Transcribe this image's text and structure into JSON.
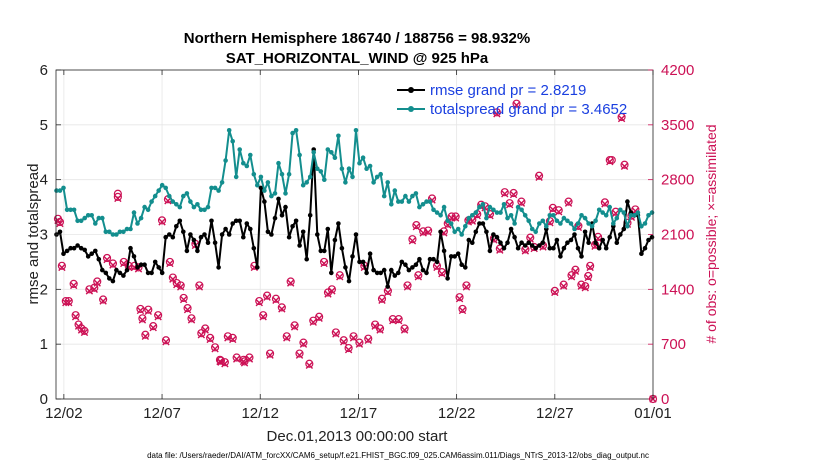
{
  "chart_data": {
    "type": "line",
    "title_line1": "Northern Hemisphere 186740 / 188756 = 98.932%",
    "title_line2": "SAT_HORIZONTAL_WIND @ 925 hPa",
    "xlabel": "Dec.01,2013 00:00:00 start",
    "ylabel": "rmse and totalspread",
    "y2label": "# of obs: o=possible; ×=assimilated",
    "xlim": [
      0.6,
      31.0
    ],
    "ylim": [
      0,
      6
    ],
    "y2lim": [
      0,
      4200
    ],
    "xticks": [
      {
        "pos": 1.0,
        "label": "12/02"
      },
      {
        "pos": 6.0,
        "label": "12/07"
      },
      {
        "pos": 11.0,
        "label": "12/12"
      },
      {
        "pos": 16.0,
        "label": "12/17"
      },
      {
        "pos": 21.0,
        "label": "12/22"
      },
      {
        "pos": 26.0,
        "label": "12/27"
      },
      {
        "pos": 31.0,
        "label": "01/01"
      }
    ],
    "yticks": [
      "0",
      "1",
      "2",
      "3",
      "4",
      "5",
      "6"
    ],
    "y2ticks": [
      "0",
      "700",
      "1400",
      "2100",
      "2800",
      "3500",
      "4200"
    ],
    "footer": "data file: /Users/raeder/DAI/ATM_forcXX/CAM6_setup/f.e21.FHIST_BGC.f09_025.CAM6assim.011/Diags_NTrS_2013-12/obs_diag_output.nc",
    "colors": {
      "rmse": "#000000",
      "spread": "#138e8e",
      "obs": "#cc1155",
      "legend_text": "#1a3fe0"
    },
    "series": [
      {
        "name": "rmse grand pr = 2.8219",
        "key": "rmse",
        "values": [
          3.0,
          3.05,
          2.65,
          2.7,
          2.75,
          2.75,
          2.8,
          2.75,
          2.72,
          2.6,
          2.65,
          2.7,
          2.55,
          2.35,
          2.3,
          2.2,
          2.15,
          2.35,
          2.3,
          2.25,
          2.35,
          2.75,
          2.6,
          2.4,
          2.45,
          2.45,
          2.3,
          2.3,
          2.5,
          2.4,
          2.3,
          2.95,
          3.0,
          2.95,
          3.15,
          3.25,
          3.05,
          2.7,
          3.0,
          2.9,
          2.7,
          2.95,
          3.0,
          2.85,
          3.25,
          2.85,
          2.4,
          3.0,
          3.1,
          3.0,
          3.2,
          3.25,
          3.25,
          2.95,
          3.2,
          3.1,
          2.75,
          2.4,
          3.85,
          3.6,
          3.05,
          3.0,
          3.3,
          3.65,
          3.35,
          3.5,
          2.95,
          3.15,
          3.25,
          2.8,
          3.05,
          2.55,
          3.35,
          4.55,
          3.0,
          2.7,
          2.7,
          3.1,
          2.3,
          2.9,
          3.2,
          2.75,
          2.4,
          2.15,
          2.6,
          3.0,
          2.5,
          2.5,
          2.3,
          2.65,
          2.35,
          2.3,
          2.3,
          2.35,
          2.05,
          2.35,
          2.25,
          2.3,
          2.5,
          2.45,
          2.35,
          2.4,
          2.45,
          2.55,
          2.35,
          2.3,
          2.55,
          2.55,
          2.5,
          3.05,
          2.7,
          2.2,
          2.6,
          2.6,
          2.65,
          2.45,
          2.4,
          2.9,
          2.85,
          3.05,
          3.2,
          3.2,
          3.05,
          2.7,
          3.0,
          2.95,
          2.85,
          2.75,
          2.85,
          3.1,
          2.95,
          2.75,
          2.85,
          2.8,
          2.85,
          2.8,
          2.75,
          2.8,
          2.85,
          3.1,
          2.75,
          2.75,
          2.9,
          2.6,
          2.75,
          2.85,
          2.9,
          3.0,
          2.75,
          2.6,
          3.05,
          2.85,
          3.2,
          2.85,
          2.75,
          2.9,
          2.75,
          2.95,
          3.15,
          2.85,
          3.0,
          3.1,
          3.6,
          3.4,
          3.35,
          3.35,
          2.65,
          2.75,
          2.9,
          2.95
        ]
      },
      {
        "name": "totalspread grand pr = 3.4652",
        "key": "spread",
        "values": [
          3.8,
          3.8,
          3.85,
          3.45,
          3.45,
          3.45,
          3.25,
          3.25,
          3.3,
          3.35,
          3.35,
          3.2,
          3.3,
          3.3,
          3.05,
          3.05,
          3.0,
          3.0,
          3.05,
          3.05,
          3.1,
          3.1,
          3.4,
          3.2,
          3.3,
          3.5,
          3.45,
          3.6,
          3.7,
          3.8,
          3.9,
          3.85,
          3.7,
          3.6,
          3.55,
          3.5,
          3.7,
          3.75,
          3.6,
          3.5,
          3.55,
          3.45,
          3.45,
          3.5,
          3.85,
          3.85,
          3.8,
          3.95,
          4.35,
          4.9,
          4.7,
          4.05,
          4.55,
          4.3,
          4.25,
          4.45,
          4.1,
          3.9,
          4.05,
          3.8,
          3.95,
          3.7,
          3.75,
          4.3,
          4.1,
          3.75,
          4.1,
          4.85,
          4.9,
          4.45,
          3.9,
          3.95,
          4.05,
          4.5,
          4.2,
          4.15,
          4.0,
          4.55,
          4.5,
          4.4,
          4.8,
          4.2,
          3.95,
          4.2,
          4.05,
          4.9,
          4.3,
          4.4,
          4.2,
          4.25,
          3.95,
          4.05,
          4.1,
          3.7,
          3.95,
          3.55,
          3.8,
          3.6,
          3.6,
          3.7,
          3.6,
          3.7,
          3.75,
          3.5,
          3.55,
          3.6,
          3.6,
          3.45,
          3.4,
          3.35,
          3.5,
          3.25,
          3.2,
          3.05,
          3.1,
          3.0,
          3.15,
          3.3,
          3.35,
          3.4,
          3.5,
          3.55,
          3.3,
          3.5,
          3.45,
          3.4,
          3.4,
          3.55,
          3.3,
          3.35,
          3.2,
          3.5,
          3.45,
          3.35,
          3.25,
          3.1,
          3.05,
          3.2,
          3.25,
          3.15,
          3.35,
          3.35,
          3.25,
          3.2,
          3.3,
          3.25,
          3.2,
          3.1,
          3.2,
          3.35,
          3.3,
          3.2,
          3.15,
          3.25,
          3.45,
          3.4,
          3.35,
          3.5,
          3.2,
          3.3,
          3.45,
          3.4,
          3.15,
          3.35,
          3.35,
          3.4,
          3.15,
          3.2,
          3.35,
          3.4
        ]
      }
    ],
    "obs_possible": [
      [
        0.7,
        2300
      ],
      [
        0.8,
        2260
      ],
      [
        0.9,
        1700
      ],
      [
        1.1,
        1250
      ],
      [
        1.25,
        1250
      ],
      [
        1.5,
        1470
      ],
      [
        1.6,
        1070
      ],
      [
        1.75,
        950
      ],
      [
        1.9,
        900
      ],
      [
        2.05,
        870
      ],
      [
        2.3,
        1400
      ],
      [
        2.55,
        1420
      ],
      [
        2.7,
        1500
      ],
      [
        3.0,
        1270
      ],
      [
        3.2,
        1800
      ],
      [
        3.5,
        1730
      ],
      [
        3.75,
        2620
      ],
      [
        3.75,
        2580
      ],
      [
        4.05,
        1750
      ],
      [
        4.3,
        1700
      ],
      [
        4.6,
        1700
      ],
      [
        4.8,
        1680
      ],
      [
        4.9,
        1150
      ],
      [
        5.0,
        1030
      ],
      [
        5.15,
        820
      ],
      [
        5.3,
        1140
      ],
      [
        5.55,
        930
      ],
      [
        5.8,
        1070
      ],
      [
        6.0,
        2280
      ],
      [
        6.2,
        750
      ],
      [
        6.3,
        2550
      ],
      [
        6.4,
        1750
      ],
      [
        6.55,
        1550
      ],
      [
        6.75,
        1480
      ],
      [
        6.95,
        1450
      ],
      [
        7.1,
        1290
      ],
      [
        7.3,
        1160
      ],
      [
        7.5,
        1030
      ],
      [
        7.7,
        1980
      ],
      [
        7.9,
        1450
      ],
      [
        8.0,
        840
      ],
      [
        8.2,
        900
      ],
      [
        8.45,
        780
      ],
      [
        8.7,
        660
      ],
      [
        8.95,
        500
      ],
      [
        9.0,
        490
      ],
      [
        9.2,
        470
      ],
      [
        9.35,
        800
      ],
      [
        9.6,
        780
      ],
      [
        9.8,
        530
      ],
      [
        10.15,
        500
      ],
      [
        10.2,
        480
      ],
      [
        10.45,
        530
      ],
      [
        10.7,
        1700
      ],
      [
        10.95,
        1250
      ],
      [
        11.15,
        1070
      ],
      [
        11.35,
        1320
      ],
      [
        11.5,
        580
      ],
      [
        11.8,
        1280
      ],
      [
        12.1,
        1170
      ],
      [
        12.35,
        800
      ],
      [
        12.55,
        1500
      ],
      [
        12.75,
        940
      ],
      [
        13.0,
        580
      ],
      [
        13.2,
        720
      ],
      [
        13.5,
        450
      ],
      [
        13.7,
        1000
      ],
      [
        14.0,
        1050
      ],
      [
        14.25,
        1750
      ],
      [
        14.45,
        1360
      ],
      [
        14.65,
        1400
      ],
      [
        14.85,
        850
      ],
      [
        15.05,
        1580
      ],
      [
        15.25,
        750
      ],
      [
        15.5,
        650
      ],
      [
        15.75,
        800
      ],
      [
        16.05,
        720
      ],
      [
        16.3,
        1700
      ],
      [
        16.5,
        770
      ],
      [
        16.85,
        950
      ],
      [
        17.1,
        900
      ],
      [
        17.2,
        1280
      ],
      [
        17.5,
        1380
      ],
      [
        17.75,
        1020
      ],
      [
        18.05,
        1020
      ],
      [
        18.35,
        900
      ],
      [
        18.5,
        1450
      ],
      [
        18.75,
        2040
      ],
      [
        18.95,
        2220
      ],
      [
        19.05,
        1580
      ],
      [
        19.3,
        2140
      ],
      [
        19.55,
        2150
      ],
      [
        19.75,
        2560
      ],
      [
        20.0,
        1700
      ],
      [
        20.25,
        1620
      ],
      [
        20.35,
        2140
      ],
      [
        20.55,
        2240
      ],
      [
        20.75,
        2330
      ],
      [
        20.95,
        2330
      ],
      [
        21.15,
        1300
      ],
      [
        21.3,
        1150
      ],
      [
        21.5,
        1450
      ],
      [
        21.6,
        2280
      ],
      [
        21.8,
        2290
      ],
      [
        22.05,
        2360
      ],
      [
        22.25,
        2480
      ],
      [
        22.45,
        2460
      ],
      [
        22.7,
        2360
      ],
      [
        22.9,
        2050
      ],
      [
        23.05,
        3660
      ],
      [
        23.2,
        1920
      ],
      [
        23.45,
        2640
      ],
      [
        23.7,
        2500
      ],
      [
        23.9,
        2630
      ],
      [
        24.05,
        3770
      ],
      [
        24.3,
        2520
      ],
      [
        24.5,
        1910
      ],
      [
        24.75,
        2060
      ],
      [
        24.95,
        1940
      ],
      [
        25.2,
        2850
      ],
      [
        25.4,
        1960
      ],
      [
        25.75,
        2270
      ],
      [
        25.9,
        2440
      ],
      [
        26.0,
        1380
      ],
      [
        26.2,
        2410
      ],
      [
        26.45,
        1460
      ],
      [
        26.7,
        2520
      ],
      [
        26.85,
        1580
      ],
      [
        27.05,
        1650
      ],
      [
        27.2,
        2210
      ],
      [
        27.35,
        1460
      ],
      [
        27.55,
        1440
      ],
      [
        27.7,
        1570
      ],
      [
        27.8,
        1700
      ],
      [
        28.05,
        1970
      ],
      [
        28.2,
        2070
      ],
      [
        28.55,
        2510
      ],
      [
        28.8,
        3050
      ],
      [
        28.9,
        3050
      ],
      [
        29.1,
        2390
      ],
      [
        29.4,
        3600
      ],
      [
        29.55,
        2990
      ],
      [
        29.7,
        2250
      ],
      [
        29.9,
        2340
      ],
      [
        30.1,
        2420
      ]
    ],
    "obs_assimilated": [
      [
        0.7,
        2280
      ],
      [
        0.8,
        2240
      ],
      [
        0.9,
        1680
      ],
      [
        1.1,
        1230
      ],
      [
        1.25,
        1230
      ],
      [
        1.5,
        1450
      ],
      [
        1.6,
        1050
      ],
      [
        1.75,
        930
      ],
      [
        1.9,
        880
      ],
      [
        2.05,
        850
      ],
      [
        2.3,
        1380
      ],
      [
        2.55,
        1400
      ],
      [
        2.7,
        1480
      ],
      [
        3.0,
        1250
      ],
      [
        3.2,
        1780
      ],
      [
        3.5,
        1710
      ],
      [
        3.75,
        2560
      ],
      [
        4.05,
        1730
      ],
      [
        4.3,
        1680
      ],
      [
        4.6,
        1680
      ],
      [
        4.8,
        1660
      ],
      [
        4.9,
        1130
      ],
      [
        5.0,
        1010
      ],
      [
        5.15,
        800
      ],
      [
        5.3,
        1120
      ],
      [
        5.55,
        910
      ],
      [
        5.8,
        1050
      ],
      [
        6.0,
        2260
      ],
      [
        6.2,
        730
      ],
      [
        6.3,
        2530
      ],
      [
        6.4,
        1730
      ],
      [
        6.55,
        1530
      ],
      [
        6.75,
        1460
      ],
      [
        6.95,
        1430
      ],
      [
        7.1,
        1270
      ],
      [
        7.3,
        1140
      ],
      [
        7.5,
        1010
      ],
      [
        7.7,
        1960
      ],
      [
        7.9,
        1430
      ],
      [
        8.0,
        820
      ],
      [
        8.2,
        880
      ],
      [
        8.45,
        760
      ],
      [
        8.7,
        640
      ],
      [
        8.95,
        480
      ],
      [
        9.0,
        470
      ],
      [
        9.2,
        450
      ],
      [
        9.35,
        780
      ],
      [
        9.6,
        760
      ],
      [
        9.8,
        510
      ],
      [
        10.15,
        480
      ],
      [
        10.2,
        460
      ],
      [
        10.45,
        510
      ],
      [
        10.7,
        1680
      ],
      [
        10.95,
        1230
      ],
      [
        11.15,
        1050
      ],
      [
        11.35,
        1300
      ],
      [
        11.5,
        560
      ],
      [
        11.8,
        1260
      ],
      [
        12.1,
        1150
      ],
      [
        12.35,
        780
      ],
      [
        12.55,
        1480
      ],
      [
        12.75,
        920
      ],
      [
        13.0,
        560
      ],
      [
        13.2,
        700
      ],
      [
        13.5,
        430
      ],
      [
        13.7,
        980
      ],
      [
        14.0,
        1030
      ],
      [
        14.25,
        1730
      ],
      [
        14.45,
        1340
      ],
      [
        14.65,
        1380
      ],
      [
        14.85,
        830
      ],
      [
        15.05,
        1560
      ],
      [
        15.25,
        730
      ],
      [
        15.5,
        630
      ],
      [
        15.75,
        780
      ],
      [
        16.05,
        700
      ],
      [
        16.3,
        1680
      ],
      [
        16.5,
        750
      ],
      [
        16.85,
        930
      ],
      [
        17.1,
        880
      ],
      [
        17.2,
        1260
      ],
      [
        17.5,
        1360
      ],
      [
        17.75,
        1000
      ],
      [
        18.05,
        1000
      ],
      [
        18.35,
        880
      ],
      [
        18.5,
        1430
      ],
      [
        18.75,
        2020
      ],
      [
        18.95,
        2200
      ],
      [
        19.05,
        1560
      ],
      [
        19.3,
        2120
      ],
      [
        19.55,
        2130
      ],
      [
        19.75,
        2540
      ],
      [
        20.0,
        1680
      ],
      [
        20.25,
        1600
      ],
      [
        20.35,
        2120
      ],
      [
        20.55,
        2220
      ],
      [
        20.75,
        2310
      ],
      [
        20.95,
        2310
      ],
      [
        21.15,
        1280
      ],
      [
        21.3,
        1130
      ],
      [
        21.5,
        1430
      ],
      [
        21.6,
        2260
      ],
      [
        21.8,
        2270
      ],
      [
        22.05,
        2340
      ],
      [
        22.25,
        2460
      ],
      [
        22.45,
        2440
      ],
      [
        22.7,
        2340
      ],
      [
        22.9,
        2030
      ],
      [
        23.05,
        3640
      ],
      [
        23.2,
        1900
      ],
      [
        23.45,
        2620
      ],
      [
        23.7,
        2480
      ],
      [
        23.9,
        2610
      ],
      [
        24.05,
        3750
      ],
      [
        24.3,
        2500
      ],
      [
        24.5,
        1890
      ],
      [
        24.75,
        2040
      ],
      [
        24.95,
        1920
      ],
      [
        25.2,
        2830
      ],
      [
        25.4,
        1940
      ],
      [
        25.75,
        2250
      ],
      [
        25.9,
        2420
      ],
      [
        26.0,
        1360
      ],
      [
        26.2,
        2390
      ],
      [
        26.45,
        1440
      ],
      [
        26.7,
        2500
      ],
      [
        26.85,
        1560
      ],
      [
        27.05,
        1630
      ],
      [
        27.2,
        2190
      ],
      [
        27.35,
        1440
      ],
      [
        27.55,
        1420
      ],
      [
        27.7,
        1550
      ],
      [
        27.8,
        1680
      ],
      [
        28.05,
        1950
      ],
      [
        28.2,
        2050
      ],
      [
        28.55,
        2490
      ],
      [
        28.8,
        3030
      ],
      [
        29.1,
        2370
      ],
      [
        29.4,
        3580
      ],
      [
        29.55,
        2970
      ],
      [
        29.7,
        2230
      ],
      [
        29.9,
        2320
      ],
      [
        30.1,
        2400
      ],
      [
        31.0,
        0
      ]
    ],
    "obs_possible_extra": [
      [
        31.0,
        0
      ]
    ]
  }
}
